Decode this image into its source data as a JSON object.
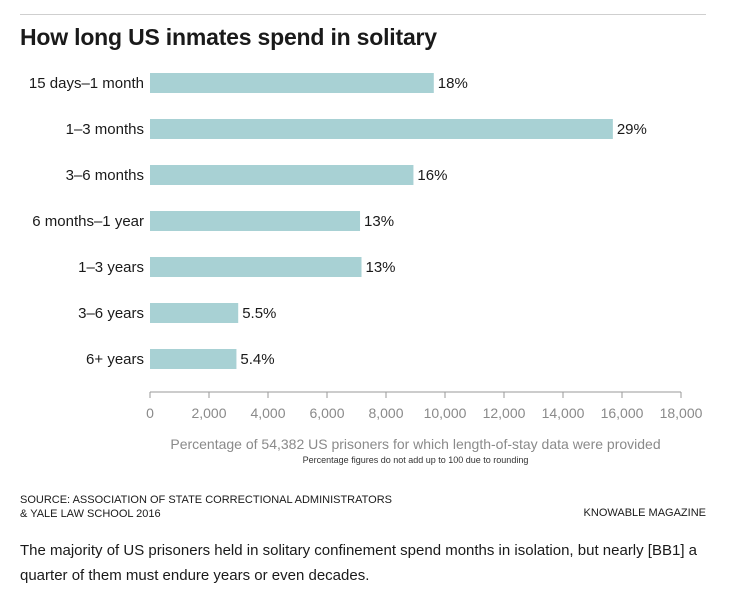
{
  "chart_data": {
    "type": "bar",
    "orientation": "horizontal",
    "title": "How long US inmates spend in solitary",
    "categories": [
      "15 days–1 month",
      "1–3 months",
      "3–6 months",
      "6 months–1 year",
      "1–3 years",
      "3–6 years",
      "6+ years"
    ],
    "values": [
      9620,
      15690,
      8930,
      7120,
      7170,
      2990,
      2930
    ],
    "data_labels": [
      "18%",
      "29%",
      "16%",
      "13%",
      "13%",
      "5.5%",
      "5.4%"
    ],
    "xlim": [
      0,
      18000
    ],
    "xticks": [
      0,
      2000,
      4000,
      6000,
      8000,
      10000,
      12000,
      14000,
      16000,
      18000
    ],
    "xtick_labels": [
      "0",
      "2,000",
      "4,000",
      "6,000",
      "8,000",
      "10,000",
      "12,000",
      "14,000",
      "16,000",
      "18,000"
    ],
    "xlabel": "Percentage of 54,382 US prisoners for which length-of-stay data were provided",
    "note": "Percentage figures do not add up to 100 due to rounding",
    "bar_color": "#a8d1d4",
    "grid": false
  },
  "footer": {
    "source": "SOURCE: ASSOCIATION OF STATE CORRECTIONAL ADMINISTRATORS\n& YALE LAW SCHOOL 2016",
    "credit": "KNOWABLE MAGAZINE"
  },
  "caption": "The majority of US prisoners held in solitary confinement spend months in isolation, but nearly [BB1] a quarter of them must endure years or even decades."
}
